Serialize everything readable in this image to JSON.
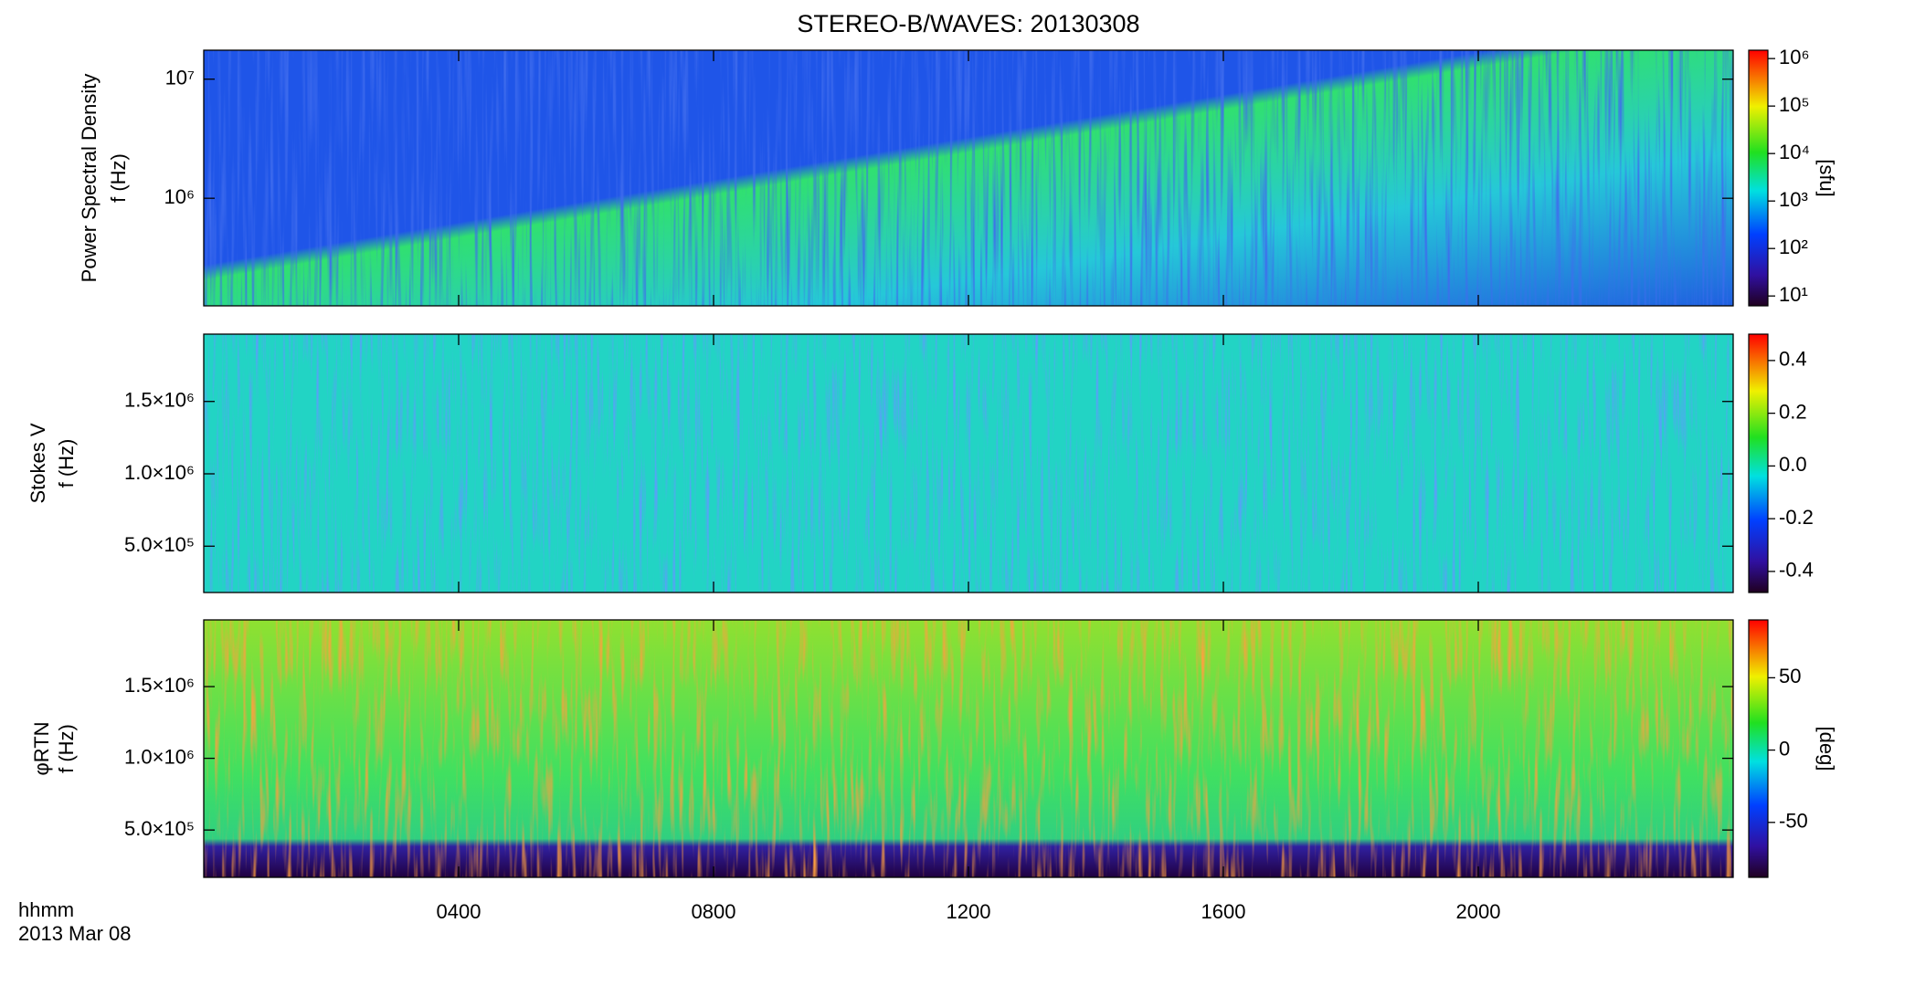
{
  "chart_data": [
    {
      "type": "heatmap",
      "title": "STEREO-B/WAVES: 20130308",
      "ylabel": "Power Spectral Density",
      "ylabel2": "f (Hz)",
      "xlim": [
        0,
        24
      ],
      "ylim": [
        125000,
        17500000
      ],
      "log": true,
      "yticks": [
        {
          "value": 1000000,
          "label": "10⁶"
        },
        {
          "value": 10000000,
          "label": "10⁷"
        }
      ],
      "colorbar": {
        "label": "[sfu]",
        "log": true,
        "ylim": [
          6.2,
          1500000
        ],
        "yticks": [
          {
            "value": 10,
            "label": "10¹"
          },
          {
            "value": 100,
            "label": "10²"
          },
          {
            "value": 1000,
            "label": "10³"
          },
          {
            "value": 10000,
            "label": "10⁴"
          },
          {
            "value": 100000,
            "label": "10⁵"
          },
          {
            "value": 1000000,
            "label": "10⁶"
          }
        ]
      }
    },
    {
      "type": "heatmap",
      "ylabel": "Stokes V",
      "ylabel2": "f (Hz)",
      "xlim": [
        0,
        24
      ],
      "ylim": [
        180000,
        1965000
      ],
      "log": false,
      "yticks": [
        {
          "value": 500000,
          "label": "5.0×10⁵"
        },
        {
          "value": 1000000,
          "label": "1.0×10⁶"
        },
        {
          "value": 1500000,
          "label": "1.5×10⁶"
        }
      ],
      "colorbar": {
        "log": false,
        "ylim": [
          -0.48,
          0.5
        ],
        "yticks": [
          -0.4,
          -0.2,
          {
            "value": 0,
            "label": "0.0"
          },
          0.2,
          0.4
        ]
      }
    },
    {
      "type": "heatmap",
      "ylabel": "φRTN",
      "ylabel2": "f (Hz)",
      "xlim": [
        0,
        24
      ],
      "ylim": [
        170000,
        1965000
      ],
      "log": false,
      "yticks": [
        {
          "value": 500000,
          "label": "5.0×10⁵"
        },
        {
          "value": 1000000,
          "label": "1.0×10⁶"
        },
        {
          "value": 1500000,
          "label": "1.5×10⁶"
        }
      ],
      "xlabel": "hhmm",
      "date": "2013 Mar 08",
      "xticks": [
        {
          "value": 4,
          "label": "0400"
        },
        {
          "value": 8,
          "label": "0800"
        },
        {
          "value": 12,
          "label": "1200"
        },
        {
          "value": 16,
          "label": "1600"
        },
        {
          "value": 20,
          "label": "2000"
        }
      ],
      "colorbar": {
        "label": "[deg]",
        "log": false,
        "ylim": [
          -88,
          90
        ],
        "yticks": [
          -50,
          0,
          50
        ]
      }
    }
  ]
}
